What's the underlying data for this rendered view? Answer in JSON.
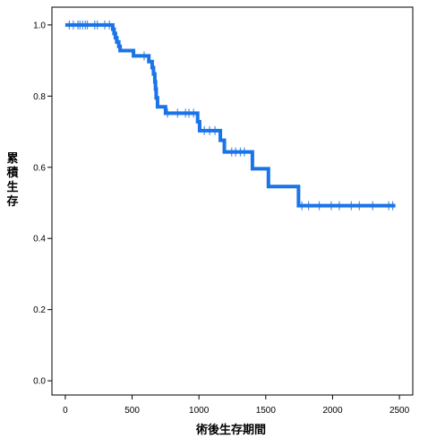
{
  "chart_data": {
    "type": "line",
    "subtype": "kaplan-meier-survival",
    "xlabel": "術後生存期間",
    "ylabel": "累積生存",
    "xlim": [
      -100,
      2600
    ],
    "ylim": [
      -0.04,
      1.05
    ],
    "x_ticks": [
      0,
      500,
      1000,
      1500,
      2000,
      2500
    ],
    "y_ticks": [
      0.0,
      0.2,
      0.4,
      0.6,
      0.8,
      1.0
    ],
    "y_tick_labels": [
      "0.0",
      "0.2",
      "0.4",
      "0.6",
      "0.8",
      "1.0"
    ],
    "grid": false,
    "legend": "none",
    "line_color": "#1a74e8",
    "series": [
      {
        "steps": [
          {
            "x": 0,
            "y": 1.0
          },
          {
            "x": 355,
            "y": 0.988
          },
          {
            "x": 365,
            "y": 0.976
          },
          {
            "x": 375,
            "y": 0.964
          },
          {
            "x": 385,
            "y": 0.952
          },
          {
            "x": 400,
            "y": 0.94
          },
          {
            "x": 410,
            "y": 0.928
          },
          {
            "x": 510,
            "y": 0.913
          },
          {
            "x": 625,
            "y": 0.897
          },
          {
            "x": 650,
            "y": 0.88
          },
          {
            "x": 660,
            "y": 0.862
          },
          {
            "x": 670,
            "y": 0.84
          },
          {
            "x": 675,
            "y": 0.82
          },
          {
            "x": 680,
            "y": 0.795
          },
          {
            "x": 690,
            "y": 0.77
          },
          {
            "x": 750,
            "y": 0.752
          },
          {
            "x": 990,
            "y": 0.728
          },
          {
            "x": 1005,
            "y": 0.703
          },
          {
            "x": 1160,
            "y": 0.676
          },
          {
            "x": 1190,
            "y": 0.643
          },
          {
            "x": 1400,
            "y": 0.596
          },
          {
            "x": 1520,
            "y": 0.546
          },
          {
            "x": 1745,
            "y": 0.492
          },
          {
            "x": 2470,
            "y": 0.492
          }
        ],
        "censored": [
          {
            "x": 30,
            "y": 1.0
          },
          {
            "x": 60,
            "y": 1.0
          },
          {
            "x": 95,
            "y": 1.0
          },
          {
            "x": 110,
            "y": 1.0
          },
          {
            "x": 130,
            "y": 1.0
          },
          {
            "x": 150,
            "y": 1.0
          },
          {
            "x": 165,
            "y": 1.0
          },
          {
            "x": 220,
            "y": 1.0
          },
          {
            "x": 240,
            "y": 1.0
          },
          {
            "x": 295,
            "y": 1.0
          },
          {
            "x": 330,
            "y": 1.0
          },
          {
            "x": 395,
            "y": 0.952
          },
          {
            "x": 590,
            "y": 0.913
          },
          {
            "x": 765,
            "y": 0.752
          },
          {
            "x": 840,
            "y": 0.752
          },
          {
            "x": 900,
            "y": 0.752
          },
          {
            "x": 925,
            "y": 0.752
          },
          {
            "x": 960,
            "y": 0.752
          },
          {
            "x": 1040,
            "y": 0.703
          },
          {
            "x": 1080,
            "y": 0.703
          },
          {
            "x": 1120,
            "y": 0.703
          },
          {
            "x": 1245,
            "y": 0.643
          },
          {
            "x": 1275,
            "y": 0.643
          },
          {
            "x": 1310,
            "y": 0.643
          },
          {
            "x": 1340,
            "y": 0.643
          },
          {
            "x": 1770,
            "y": 0.492
          },
          {
            "x": 1820,
            "y": 0.492
          },
          {
            "x": 1900,
            "y": 0.492
          },
          {
            "x": 1990,
            "y": 0.492
          },
          {
            "x": 2050,
            "y": 0.492
          },
          {
            "x": 2140,
            "y": 0.492
          },
          {
            "x": 2200,
            "y": 0.492
          },
          {
            "x": 2300,
            "y": 0.492
          },
          {
            "x": 2420,
            "y": 0.492
          },
          {
            "x": 2450,
            "y": 0.492
          }
        ]
      }
    ]
  }
}
